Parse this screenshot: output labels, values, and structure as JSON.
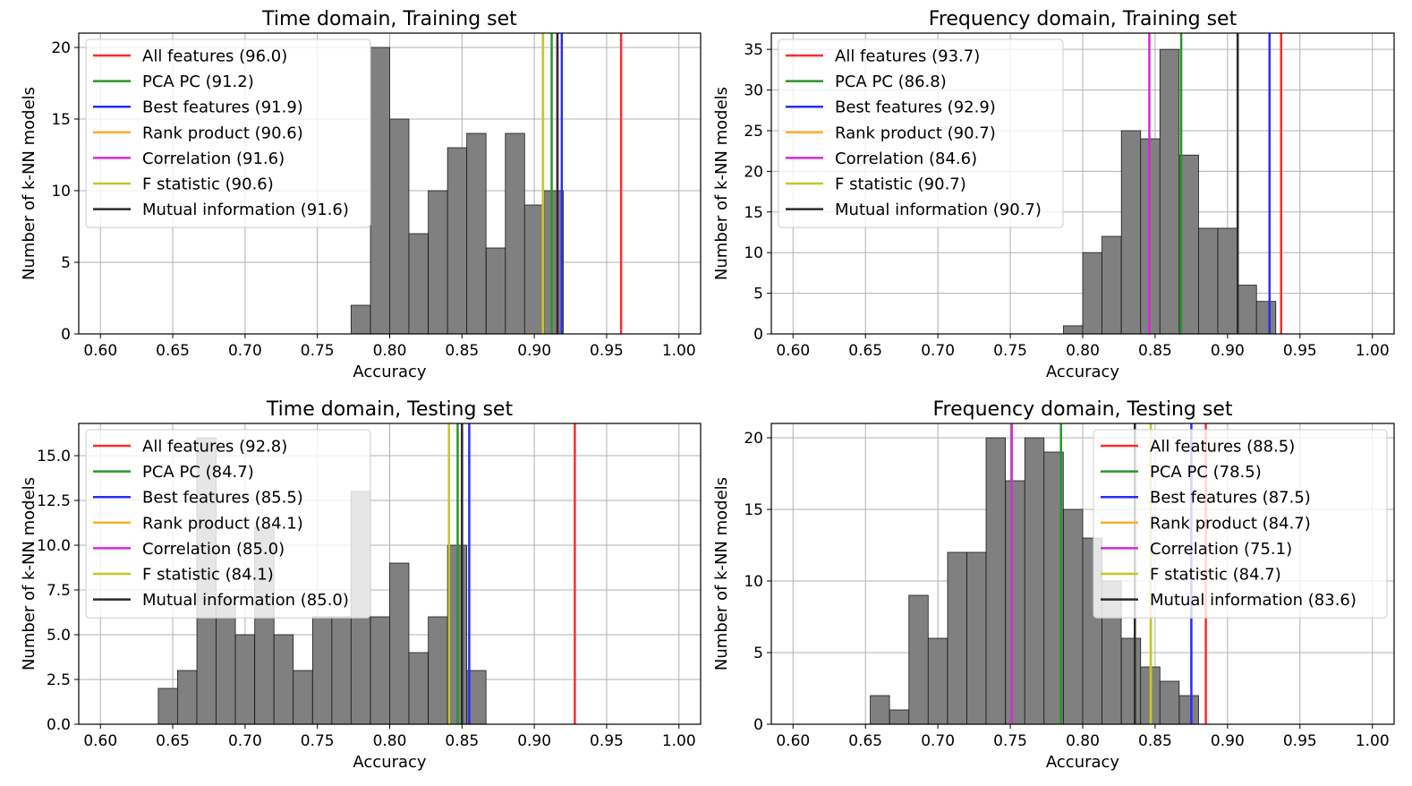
{
  "figure": {
    "background": "#ffffff",
    "bar_color": "#808080",
    "grid_color": "#b0b0b0"
  },
  "chart_data": [
    {
      "type": "bar",
      "title": "Time domain, Training set",
      "xlabel": "Accuracy",
      "ylabel": "Number of k-NN models",
      "xlim": [
        0.585,
        1.015
      ],
      "ylim": [
        0,
        21
      ],
      "xticks": [
        "0.60",
        "0.65",
        "0.70",
        "0.75",
        "0.80",
        "0.85",
        "0.90",
        "0.95",
        "1.00"
      ],
      "yticks": [
        "0",
        "5",
        "10",
        "15",
        "20"
      ],
      "grid": true,
      "legend_position": "top-left",
      "bin_width": 0.0133,
      "bins": [
        {
          "x": 0.7733,
          "count": 2
        },
        {
          "x": 0.7867,
          "count": 20
        },
        {
          "x": 0.8,
          "count": 15
        },
        {
          "x": 0.8133,
          "count": 7
        },
        {
          "x": 0.8267,
          "count": 10
        },
        {
          "x": 0.84,
          "count": 13
        },
        {
          "x": 0.8533,
          "count": 14
        },
        {
          "x": 0.8667,
          "count": 6
        },
        {
          "x": 0.88,
          "count": 14
        },
        {
          "x": 0.8933,
          "count": 9
        },
        {
          "x": 0.9067,
          "count": 10
        }
      ],
      "lines": [
        {
          "label": "All features (96.0)",
          "value": 0.96,
          "color": "#ff2a2a"
        },
        {
          "label": "PCA PC (91.2)",
          "value": 0.912,
          "color": "#2a952a"
        },
        {
          "label": "Best features (91.9)",
          "value": 0.919,
          "color": "#2a2aff"
        },
        {
          "label": "Rank product (90.6)",
          "value": 0.906,
          "color": "#ffad2a"
        },
        {
          "label": "Correlation (91.6)",
          "value": 0.916,
          "color": "#d42ad4"
        },
        {
          "label": "F statistic (90.6)",
          "value": 0.906,
          "color": "#c6c62a"
        },
        {
          "label": "Mutual information (91.6)",
          "value": 0.916,
          "color": "#2a2a2a"
        }
      ]
    },
    {
      "type": "bar",
      "title": "Frequency domain, Training set",
      "xlabel": "Accuracy",
      "ylabel": "Number of k-NN models",
      "xlim": [
        0.585,
        1.015
      ],
      "ylim": [
        0,
        37
      ],
      "xticks": [
        "0.60",
        "0.65",
        "0.70",
        "0.75",
        "0.80",
        "0.85",
        "0.90",
        "0.95",
        "1.00"
      ],
      "yticks": [
        "0",
        "5",
        "10",
        "15",
        "20",
        "25",
        "30",
        "35"
      ],
      "grid": true,
      "legend_position": "top-left",
      "bin_width": 0.0133,
      "bins": [
        {
          "x": 0.7867,
          "count": 1
        },
        {
          "x": 0.8,
          "count": 10
        },
        {
          "x": 0.8133,
          "count": 12
        },
        {
          "x": 0.8267,
          "count": 25
        },
        {
          "x": 0.84,
          "count": 24
        },
        {
          "x": 0.8533,
          "count": 35
        },
        {
          "x": 0.8667,
          "count": 22
        },
        {
          "x": 0.88,
          "count": 13
        },
        {
          "x": 0.8933,
          "count": 13
        },
        {
          "x": 0.9067,
          "count": 6
        },
        {
          "x": 0.92,
          "count": 4
        }
      ],
      "lines": [
        {
          "label": "All features (93.7)",
          "value": 0.937,
          "color": "#ff2a2a"
        },
        {
          "label": "PCA PC (86.8)",
          "value": 0.868,
          "color": "#2a952a"
        },
        {
          "label": "Best features (92.9)",
          "value": 0.929,
          "color": "#2a2aff"
        },
        {
          "label": "Rank product (90.7)",
          "value": 0.907,
          "color": "#ffad2a"
        },
        {
          "label": "Correlation (84.6)",
          "value": 0.846,
          "color": "#d42ad4"
        },
        {
          "label": "F statistic (90.7)",
          "value": 0.907,
          "color": "#c6c62a"
        },
        {
          "label": "Mutual information (90.7)",
          "value": 0.907,
          "color": "#2a2a2a"
        }
      ]
    },
    {
      "type": "bar",
      "title": "Time domain, Testing set",
      "xlabel": "Accuracy",
      "ylabel": "Number of k-NN models",
      "xlim": [
        0.585,
        1.015
      ],
      "ylim": [
        0,
        16.8
      ],
      "xticks": [
        "0.60",
        "0.65",
        "0.70",
        "0.75",
        "0.80",
        "0.85",
        "0.90",
        "0.95",
        "1.00"
      ],
      "yticks": [
        "0.0",
        "2.5",
        "5.0",
        "7.5",
        "10.0",
        "12.5",
        "15.0"
      ],
      "grid": true,
      "legend_position": "top-left",
      "bin_width": 0.0133,
      "bins": [
        {
          "x": 0.64,
          "count": 2
        },
        {
          "x": 0.6533,
          "count": 3
        },
        {
          "x": 0.6667,
          "count": 16
        },
        {
          "x": 0.68,
          "count": 7
        },
        {
          "x": 0.6933,
          "count": 5
        },
        {
          "x": 0.7067,
          "count": 11
        },
        {
          "x": 0.72,
          "count": 5
        },
        {
          "x": 0.7333,
          "count": 3
        },
        {
          "x": 0.7467,
          "count": 6
        },
        {
          "x": 0.76,
          "count": 6
        },
        {
          "x": 0.7733,
          "count": 13
        },
        {
          "x": 0.7867,
          "count": 6
        },
        {
          "x": 0.8,
          "count": 9
        },
        {
          "x": 0.8133,
          "count": 4
        },
        {
          "x": 0.8267,
          "count": 6
        },
        {
          "x": 0.84,
          "count": 10
        },
        {
          "x": 0.8533,
          "count": 3
        }
      ],
      "lines": [
        {
          "label": "All features (92.8)",
          "value": 0.928,
          "color": "#ff2a2a"
        },
        {
          "label": "PCA PC (84.7)",
          "value": 0.847,
          "color": "#2a952a"
        },
        {
          "label": "Best features (85.5)",
          "value": 0.855,
          "color": "#2a2aff"
        },
        {
          "label": "Rank product (84.1)",
          "value": 0.841,
          "color": "#ffad2a"
        },
        {
          "label": "Correlation (85.0)",
          "value": 0.85,
          "color": "#d42ad4"
        },
        {
          "label": "F statistic (84.1)",
          "value": 0.841,
          "color": "#c6c62a"
        },
        {
          "label": "Mutual information (85.0)",
          "value": 0.85,
          "color": "#2a2a2a"
        }
      ]
    },
    {
      "type": "bar",
      "title": "Frequency domain, Testing set",
      "xlabel": "Accuracy",
      "ylabel": "Number of k-NN models",
      "xlim": [
        0.585,
        1.015
      ],
      "ylim": [
        0,
        21
      ],
      "xticks": [
        "0.60",
        "0.65",
        "0.70",
        "0.75",
        "0.80",
        "0.85",
        "0.90",
        "0.95",
        "1.00"
      ],
      "yticks": [
        "0",
        "5",
        "10",
        "15",
        "20"
      ],
      "grid": true,
      "legend_position": "top-right",
      "bin_width": 0.0133,
      "bins": [
        {
          "x": 0.6533,
          "count": 2
        },
        {
          "x": 0.6667,
          "count": 1
        },
        {
          "x": 0.68,
          "count": 9
        },
        {
          "x": 0.6933,
          "count": 6
        },
        {
          "x": 0.7067,
          "count": 12
        },
        {
          "x": 0.72,
          "count": 12
        },
        {
          "x": 0.7333,
          "count": 20
        },
        {
          "x": 0.7467,
          "count": 17
        },
        {
          "x": 0.76,
          "count": 20
        },
        {
          "x": 0.7733,
          "count": 19
        },
        {
          "x": 0.7867,
          "count": 15
        },
        {
          "x": 0.8,
          "count": 13
        },
        {
          "x": 0.8133,
          "count": 10
        },
        {
          "x": 0.8267,
          "count": 6
        },
        {
          "x": 0.84,
          "count": 4
        },
        {
          "x": 0.8533,
          "count": 3
        },
        {
          "x": 0.8667,
          "count": 2
        }
      ],
      "lines": [
        {
          "label": "All features (88.5)",
          "value": 0.885,
          "color": "#ff2a2a"
        },
        {
          "label": "PCA PC (78.5)",
          "value": 0.785,
          "color": "#2a952a"
        },
        {
          "label": "Best features (87.5)",
          "value": 0.875,
          "color": "#2a2aff"
        },
        {
          "label": "Rank product (84.7)",
          "value": 0.847,
          "color": "#ffad2a"
        },
        {
          "label": "Correlation (75.1)",
          "value": 0.751,
          "color": "#d42ad4"
        },
        {
          "label": "F statistic (84.7)",
          "value": 0.847,
          "color": "#c6c62a"
        },
        {
          "label": "Mutual information (83.6)",
          "value": 0.836,
          "color": "#2a2a2a"
        }
      ]
    }
  ]
}
